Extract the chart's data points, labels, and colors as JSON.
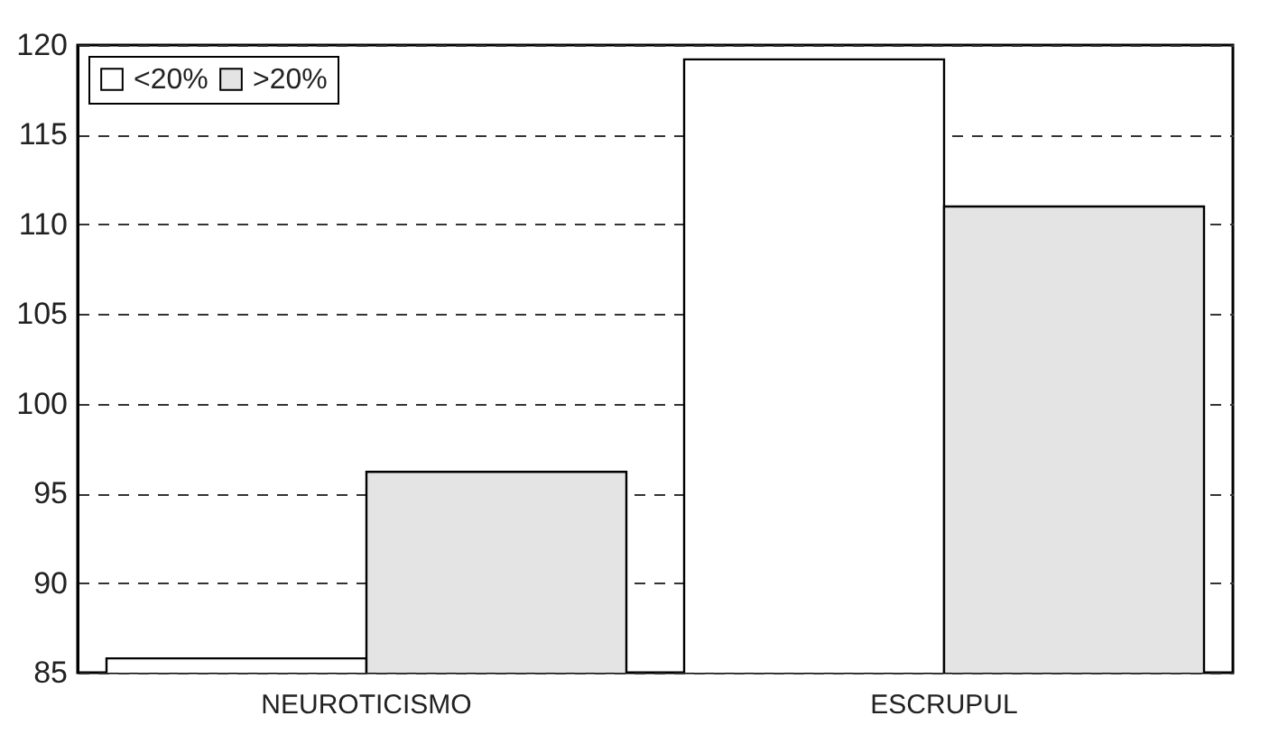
{
  "chart_data": {
    "type": "bar",
    "categories": [
      "NEUROTICISMO",
      "ESCRUPUL"
    ],
    "series": [
      {
        "name": "<20%",
        "color": "#ffffff",
        "values": [
          85.8,
          119.2
        ]
      },
      {
        "name": ">20%",
        "color": "#e4e4e4",
        "values": [
          96.2,
          111.0
        ]
      }
    ],
    "ylim": [
      85,
      120
    ],
    "yticks": [
      85,
      90,
      95,
      100,
      105,
      110,
      115,
      120
    ],
    "grid": "y",
    "legend": "top left"
  }
}
